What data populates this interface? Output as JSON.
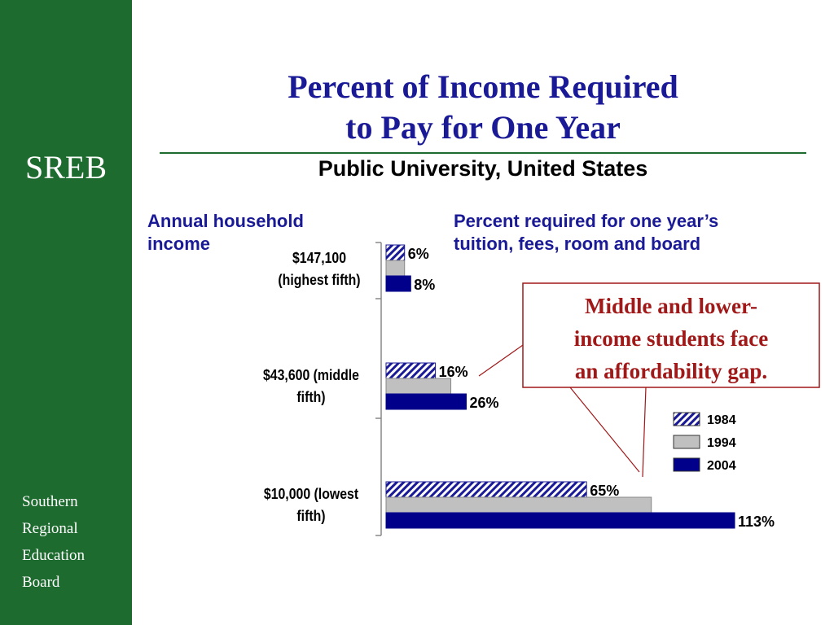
{
  "sidebar": {
    "brand": "SREB",
    "org_lines": [
      "Southern",
      "Regional",
      "Education",
      "Board"
    ]
  },
  "header": {
    "title_line1": "Percent of Income Required",
    "title_line2": "to Pay for One Year",
    "subtitle": "Public University, United States"
  },
  "columns": {
    "left_line1": "Annual household",
    "left_line2": "income",
    "right_line1": "Percent required for one year’s",
    "right_line2": "tuition, fees, room and board"
  },
  "callout": {
    "line1": "Middle and lower-",
    "line2": "income students face",
    "line3": "an affordability gap."
  },
  "colors": {
    "sidebar": "#1e6b2f",
    "title": "#1a1a96",
    "series_1984": "#1a1a96",
    "series_1994": "#c0c0c0",
    "series_2004": "#00008b",
    "callout": "#a01818"
  },
  "chart_data": {
    "type": "bar",
    "orientation": "horizontal",
    "categories": [
      [
        "$147,100",
        "(highest fifth)"
      ],
      [
        "$43,600 (middle",
        "fifth)"
      ],
      [
        "$10,000 (lowest",
        "fifth)"
      ]
    ],
    "series": [
      {
        "name": "1984",
        "values": [
          6,
          16,
          65
        ],
        "labels": [
          "6%",
          "16%",
          "65%"
        ],
        "pattern": "hatched"
      },
      {
        "name": "1994",
        "values": [
          6,
          21,
          86
        ],
        "labels": [
          null,
          null,
          null
        ],
        "pattern": "solid"
      },
      {
        "name": "2004",
        "values": [
          8,
          26,
          113
        ],
        "labels": [
          "8%",
          "26%",
          "113%"
        ],
        "pattern": "solid"
      }
    ],
    "xlim": [
      0,
      113
    ],
    "legend_position": "right"
  }
}
